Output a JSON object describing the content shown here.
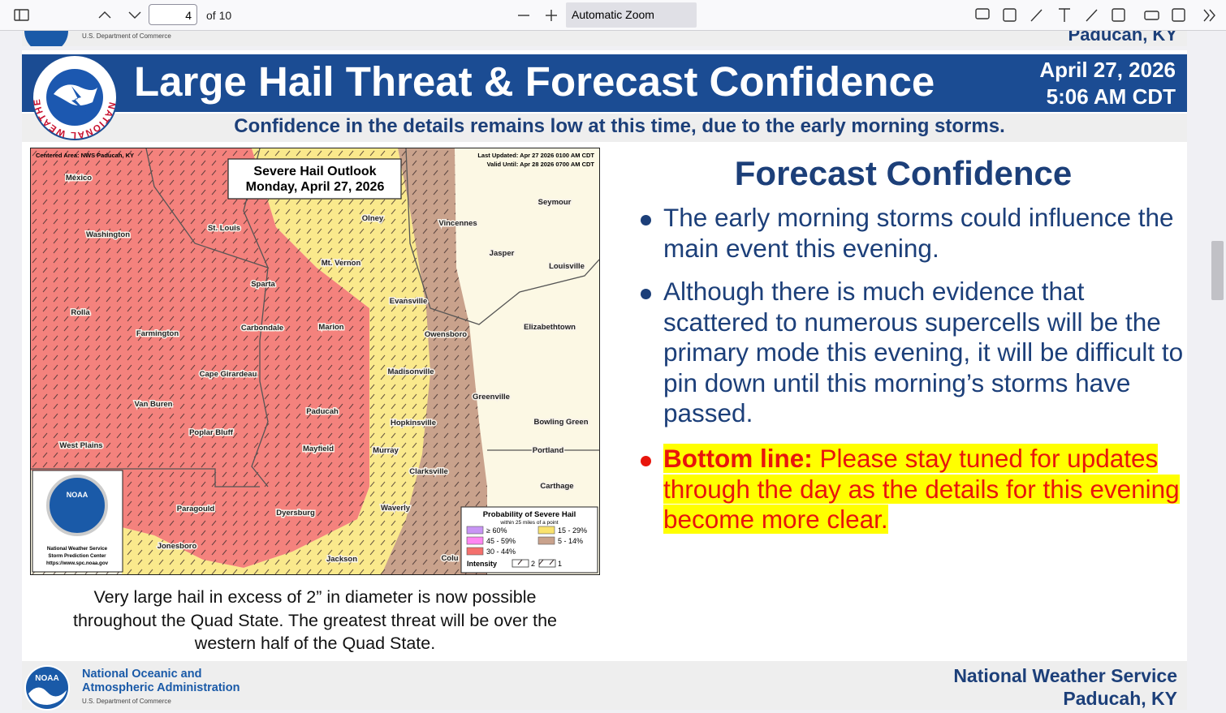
{
  "toolbar": {
    "page_number": "4",
    "page_total": "of 10",
    "zoom": "Automatic Zoom"
  },
  "previous_page_footer": {
    "department": "U.S. Department of Commerce",
    "office": "Paducah, KY"
  },
  "slide": {
    "header": {
      "logo_text": "NATIONAL WEATHER SERVICE",
      "title": "Large Hail Threat & Forecast Confidence",
      "date": "April 27, 2026",
      "time": "5:06 AM CDT",
      "subtitle": "Confidence in the details remains low at this time, due to the early morning storms."
    },
    "map": {
      "centered_area": "Centered Area: NWS Paducah, KY",
      "last_updated": "Last Updated: Apr 27 2026 0100 AM CDT",
      "valid_until": "Valid Until: Apr 28 2026 0700 AM CDT",
      "outlook_title": "Severe Hail Outlook",
      "outlook_date": "Monday, April 27, 2026",
      "cities": [
        "México",
        "Washington",
        "St. Louis",
        "Olney",
        "Vincennes",
        "Seymour",
        "Jasper",
        "Louisville",
        "Mt. Vernon",
        "Sparta",
        "Evansville",
        "Rolla",
        "Farmington",
        "Carbondale",
        "Marion",
        "Owensboro",
        "Elizabethtown",
        "Cape Girardeau",
        "Madisonville",
        "Greenville",
        "Van Buren",
        "Paducah",
        "Hopkinsville",
        "Bowling Green",
        "Poplar Bluff",
        "West Plains",
        "Mayfield",
        "Murray",
        "Portland",
        "Clarksville",
        "Carthage",
        "Paragould",
        "Dyersburg",
        "Waverly",
        "Jonesboro",
        "Jackson",
        "Colu"
      ],
      "logo": {
        "label": "NOAA",
        "lines": [
          "National Weather Service",
          "Storm Prediction Center",
          "https://www.spc.noaa.gov"
        ]
      },
      "legend": {
        "title": "Probability of Severe Hail",
        "subtitle": "within 25 miles of a point",
        "categories": [
          "≥ 60%",
          "45 - 59%",
          "30 - 44%",
          "15 - 29%",
          "5 - 14%"
        ],
        "intensity": "Intensity",
        "intensity_levels": [
          "2",
          "1"
        ]
      }
    },
    "caption": [
      "Very large hail in excess of 2” in diameter is now possible",
      "throughout the Quad State. The greatest threat will be over the",
      "western half of the Quad State."
    ],
    "confidence": {
      "heading": "Forecast Confidence",
      "bullets": [
        "The early morning storms could influence the main event this evening.",
        "Although there is much evidence that scattered to numerous supercells will be the primary mode this evening, it will be difficult to pin down until this morning’s storms have passed."
      ],
      "bottom_line": {
        "label": "Bottom line:",
        "text": "Please stay tuned for updates through the day as the details for this evening become more clear."
      }
    },
    "footer": {
      "logo_label": "NOAA",
      "agency": [
        "National Oceanic and",
        "Atmospheric Administration"
      ],
      "department": "U.S. Department of Commerce",
      "office": [
        "National Weather Service",
        "Paducah, KY"
      ]
    }
  }
}
